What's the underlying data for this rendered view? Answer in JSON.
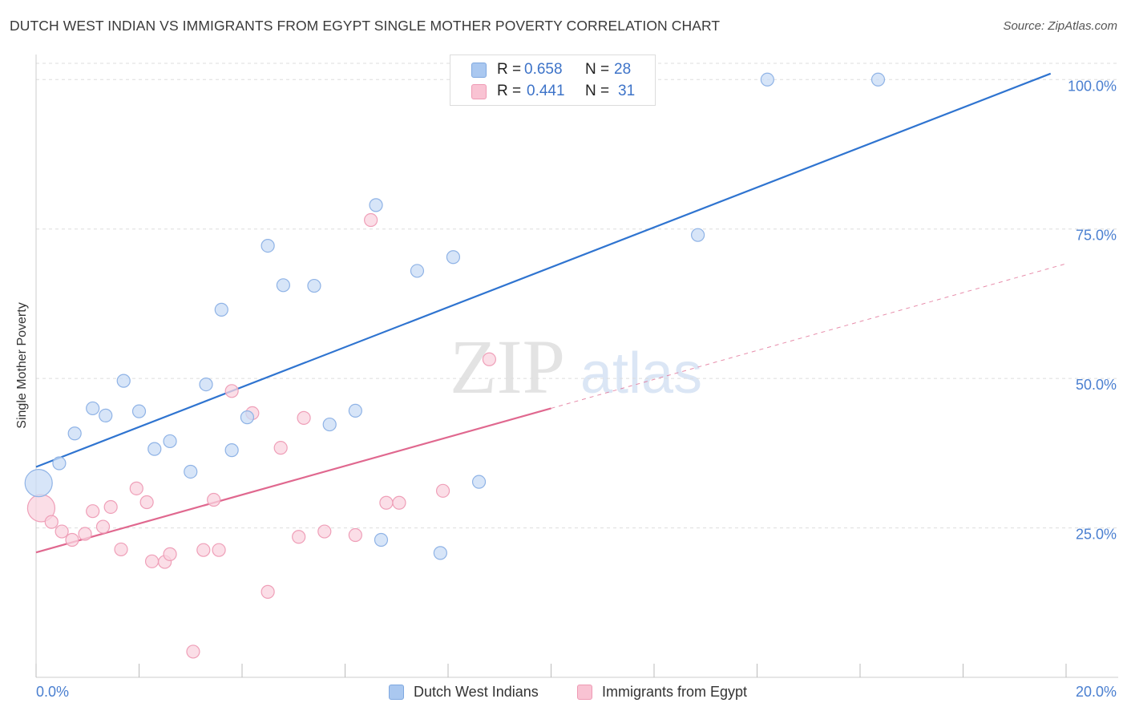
{
  "title": "DUTCH WEST INDIAN VS IMMIGRANTS FROM EGYPT SINGLE MOTHER POVERTY CORRELATION CHART",
  "source": "Source: ZipAtlas.com",
  "watermark": {
    "zip": "ZIP",
    "atlas": "atlas"
  },
  "legend": {
    "r_label": "R =",
    "n_label": "N =",
    "rows": [
      {
        "r": "0.658",
        "n": "28",
        "color": "#aac8f0",
        "border": "#7fa8e0"
      },
      {
        "r": "0.441",
        "n": "31",
        "color": "#f9c3d3",
        "border": "#ee9ab4"
      }
    ]
  },
  "colors": {
    "blue_fill": "#c9dcf6",
    "blue_stroke": "#8fb3e6",
    "blue_line": "#2f74d0",
    "pink_fill": "#fad3df",
    "pink_stroke": "#ef9fb8",
    "pink_line": "#e0688f",
    "grid": "#dddddd",
    "tick_label": "#4a7fd0"
  },
  "chart_data": {
    "type": "scatter",
    "title": "DUTCH WEST INDIAN VS IMMIGRANTS FROM EGYPT SINGLE MOTHER POVERTY CORRELATION CHART",
    "xlabel": "",
    "ylabel": "Single Mother Poverty",
    "xlim": [
      0,
      20
    ],
    "ylim": [
      0,
      105
    ],
    "x_tick_labels": [
      {
        "value": 0,
        "label": "0.0%"
      },
      {
        "value": 20,
        "label": "20.0%"
      }
    ],
    "y_tick_labels": [
      {
        "value": 25,
        "label": "25.0%"
      },
      {
        "value": 50,
        "label": "50.0%"
      },
      {
        "value": 75,
        "label": "75.0%"
      },
      {
        "value": 100,
        "label": "100.0%"
      }
    ],
    "grid": true,
    "legend_position": "top-center",
    "series": [
      {
        "name": "Dutch West Indians",
        "r": 0.658,
        "n": 28,
        "trend": {
          "x": [
            0,
            19.7
          ],
          "y": [
            35.2,
            101
          ]
        },
        "points": [
          {
            "x": 0.05,
            "y": 32.5,
            "big": true
          },
          {
            "x": 0.45,
            "y": 35.8
          },
          {
            "x": 0.75,
            "y": 40.8
          },
          {
            "x": 1.1,
            "y": 45.0
          },
          {
            "x": 1.35,
            "y": 43.8
          },
          {
            "x": 1.7,
            "y": 49.6
          },
          {
            "x": 2.0,
            "y": 44.5
          },
          {
            "x": 2.3,
            "y": 38.2
          },
          {
            "x": 2.6,
            "y": 39.5
          },
          {
            "x": 3.0,
            "y": 34.4
          },
          {
            "x": 3.3,
            "y": 49.0
          },
          {
            "x": 3.6,
            "y": 61.5
          },
          {
            "x": 3.8,
            "y": 38.0
          },
          {
            "x": 4.1,
            "y": 43.5
          },
          {
            "x": 4.5,
            "y": 72.2
          },
          {
            "x": 4.8,
            "y": 65.6
          },
          {
            "x": 5.4,
            "y": 65.5
          },
          {
            "x": 5.7,
            "y": 42.3
          },
          {
            "x": 6.2,
            "y": 44.6
          },
          {
            "x": 6.6,
            "y": 79.0
          },
          {
            "x": 6.7,
            "y": 23.0
          },
          {
            "x": 7.4,
            "y": 68.0
          },
          {
            "x": 7.85,
            "y": 20.8
          },
          {
            "x": 8.1,
            "y": 70.3
          },
          {
            "x": 8.6,
            "y": 32.7
          },
          {
            "x": 12.85,
            "y": 74.0
          },
          {
            "x": 14.2,
            "y": 100.0
          },
          {
            "x": 16.35,
            "y": 100.0
          }
        ]
      },
      {
        "name": "Immigrants from Egypt",
        "r": 0.441,
        "n": 31,
        "trend": {
          "x": [
            0,
            10.0
          ],
          "y": [
            20.9,
            45.0
          ]
        },
        "trend_extension": {
          "x": [
            10.0,
            20.0
          ],
          "y": [
            45.0,
            69.2
          ]
        },
        "points": [
          {
            "x": 0.1,
            "y": 28.3,
            "big": true
          },
          {
            "x": 0.3,
            "y": 26.0
          },
          {
            "x": 0.5,
            "y": 24.4
          },
          {
            "x": 0.7,
            "y": 23.0
          },
          {
            "x": 0.95,
            "y": 24.0
          },
          {
            "x": 1.1,
            "y": 27.8
          },
          {
            "x": 1.3,
            "y": 25.2
          },
          {
            "x": 1.45,
            "y": 28.5
          },
          {
            "x": 1.65,
            "y": 21.4
          },
          {
            "x": 1.95,
            "y": 31.6
          },
          {
            "x": 2.15,
            "y": 29.3
          },
          {
            "x": 2.25,
            "y": 19.4
          },
          {
            "x": 2.5,
            "y": 19.3
          },
          {
            "x": 2.6,
            "y": 20.6
          },
          {
            "x": 3.05,
            "y": 4.3
          },
          {
            "x": 3.25,
            "y": 21.3
          },
          {
            "x": 3.45,
            "y": 29.7
          },
          {
            "x": 3.55,
            "y": 21.3
          },
          {
            "x": 3.8,
            "y": 47.9
          },
          {
            "x": 4.2,
            "y": 44.2
          },
          {
            "x": 4.5,
            "y": 14.3
          },
          {
            "x": 4.75,
            "y": 38.4
          },
          {
            "x": 5.1,
            "y": 23.5
          },
          {
            "x": 5.2,
            "y": 43.4
          },
          {
            "x": 5.6,
            "y": 24.4
          },
          {
            "x": 6.2,
            "y": 23.8
          },
          {
            "x": 6.5,
            "y": 76.5
          },
          {
            "x": 6.8,
            "y": 29.2
          },
          {
            "x": 7.05,
            "y": 29.2
          },
          {
            "x": 7.9,
            "y": 31.2
          },
          {
            "x": 8.8,
            "y": 53.2
          }
        ]
      }
    ]
  }
}
